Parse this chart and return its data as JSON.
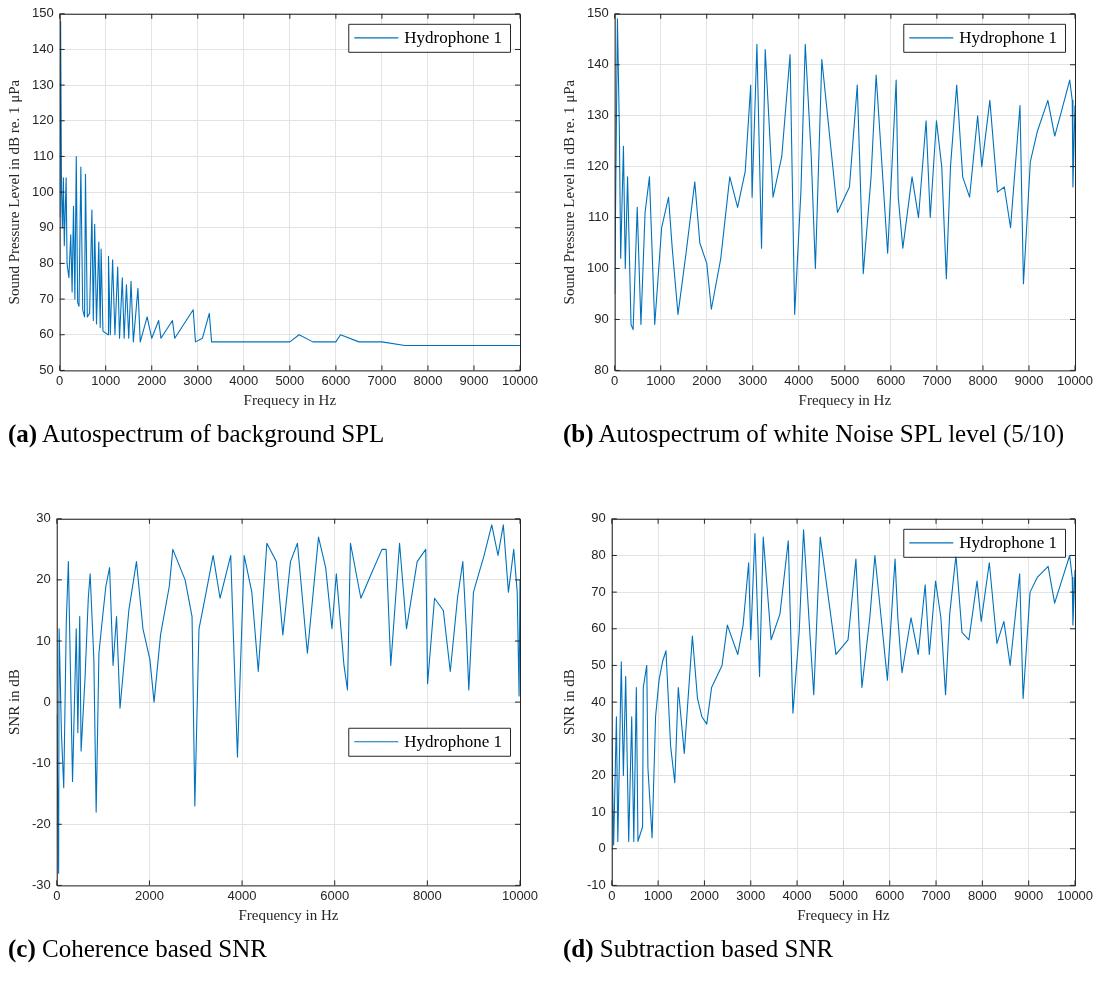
{
  "chart_data": [
    {
      "type": "line",
      "title": "(a) Autospectrum of background SPL",
      "xlabel": "Frequecy in Hz",
      "ylabel": "Sound Pressure Level in dB re. 1 μPa",
      "xlim": [
        0,
        10000
      ],
      "ylim": [
        50,
        150
      ],
      "xticks": [
        0,
        1000,
        2000,
        3000,
        4000,
        5000,
        6000,
        7000,
        8000,
        9000,
        10000
      ],
      "yticks": [
        50,
        60,
        70,
        80,
        90,
        100,
        110,
        120,
        130,
        140,
        150
      ],
      "grid": true,
      "legend": "top right",
      "series": [
        {
          "name": "Hydrophone 1",
          "color": "#0072bd",
          "x": [
            0,
            20,
            40,
            60,
            80,
            100,
            140,
            160,
            200,
            240,
            270,
            300,
            330,
            360,
            390,
            420,
            460,
            500,
            540,
            560,
            600,
            650,
            700,
            730,
            760,
            800,
            850,
            880,
            900,
            940,
            1050,
            1060,
            1100,
            1150,
            1200,
            1260,
            1300,
            1360,
            1400,
            1450,
            1500,
            1550,
            1600,
            1700,
            1750,
            1900,
            2000,
            2150,
            2200,
            2450,
            2500,
            2900,
            2950,
            3100,
            3250,
            3300,
            3500,
            4000,
            4500,
            5000,
            5200,
            5500,
            6000,
            6100,
            6500,
            7000,
            7500,
            8000,
            8500,
            9000,
            9500,
            10000
          ],
          "values": [
            93,
            148,
            100,
            90,
            104,
            85,
            104,
            80,
            76,
            88,
            72,
            96,
            70,
            110,
            69,
            68,
            107,
            67,
            65,
            105,
            65,
            66,
            95,
            64,
            91,
            63,
            86,
            62,
            84,
            61,
            60,
            82,
            60,
            81,
            60,
            79,
            59,
            76,
            59,
            74,
            59,
            75,
            58,
            73,
            58,
            65,
            59,
            64,
            59,
            64,
            59,
            67,
            58,
            59,
            66,
            58,
            58,
            58,
            58,
            58,
            60,
            58,
            58,
            60,
            58,
            58,
            57,
            57,
            57,
            57,
            57,
            57
          ]
        }
      ]
    },
    {
      "type": "line",
      "title": "(b) Autospectrum of white Noise SPL level (5/10)",
      "xlabel": "Frequecy in Hz",
      "ylabel": "Sound Pressure Level in dB re. 1 μPa",
      "xlim": [
        0,
        10000
      ],
      "ylim": [
        80,
        150
      ],
      "xticks": [
        0,
        1000,
        2000,
        3000,
        4000,
        5000,
        6000,
        7000,
        8000,
        9000,
        10000
      ],
      "yticks": [
        80,
        90,
        100,
        110,
        120,
        130,
        140,
        150
      ],
      "grid": true,
      "legend": "top right",
      "series": [
        {
          "name": "Hydrophone 1",
          "color": "#0072bd",
          "x": [
            0,
            60,
            100,
            130,
            190,
            230,
            280,
            355,
            400,
            490,
            570,
            660,
            755,
            870,
            1020,
            1170,
            1250,
            1375,
            1550,
            1740,
            1850,
            2000,
            2100,
            2305,
            2500,
            2670,
            2835,
            2955,
            2985,
            3090,
            3190,
            3270,
            3440,
            3630,
            3810,
            3910,
            4045,
            4140,
            4270,
            4360,
            4500,
            4840,
            5100,
            5270,
            5400,
            5570,
            5680,
            5930,
            6115,
            6160,
            6260,
            6460,
            6600,
            6765,
            6855,
            6990,
            7105,
            7205,
            7295,
            7430,
            7560,
            7710,
            7885,
            7975,
            8150,
            8315,
            8465,
            8600,
            8805,
            8880,
            9030,
            9185,
            9410,
            9560,
            9710,
            9885,
            9940,
            9955,
            10000
          ],
          "values": [
            95,
            149,
            128,
            102,
            124,
            100,
            118,
            89,
            88,
            112,
            89,
            111,
            118,
            89,
            108,
            114,
            104,
            91,
            103,
            117,
            105,
            101,
            92,
            102,
            118,
            112,
            119,
            136,
            114,
            144,
            104,
            143,
            114,
            122,
            142,
            91,
            115,
            144,
            122,
            100,
            141,
            111,
            116,
            136,
            99,
            118,
            138,
            103,
            137,
            114,
            104,
            118,
            110,
            129,
            110,
            129,
            120,
            98,
            120,
            136,
            118,
            114,
            130,
            120,
            133,
            115,
            116,
            108,
            132,
            97,
            121,
            127,
            133,
            126,
            131,
            137,
            133,
            116,
            132
          ]
        }
      ]
    },
    {
      "type": "line",
      "title": "(c) Coherence based SNR",
      "xlabel": "Frequency in Hz",
      "ylabel": "SNR in dB",
      "xlim": [
        0,
        10000
      ],
      "ylim": [
        -30,
        30
      ],
      "xticks": [
        0,
        2000,
        4000,
        6000,
        8000,
        10000
      ],
      "yticks": [
        -30,
        -20,
        -10,
        0,
        10,
        20,
        30
      ],
      "grid": true,
      "legend": "right",
      "series": [
        {
          "name": "Hydrophone 1",
          "color": "#0072bd",
          "x": [
            0,
            40,
            50,
            100,
            150,
            205,
            250,
            340,
            420,
            455,
            495,
            525,
            610,
            680,
            720,
            800,
            850,
            910,
            990,
            1060,
            1140,
            1215,
            1290,
            1365,
            1555,
            1720,
            1860,
            2010,
            2100,
            2240,
            2430,
            2505,
            2770,
            2920,
            2980,
            3070,
            3225,
            3375,
            3525,
            3755,
            3900,
            4045,
            4210,
            4350,
            4535,
            4740,
            4880,
            5045,
            5195,
            5410,
            5650,
            5805,
            5940,
            6035,
            6200,
            6275,
            6340,
            6565,
            6790,
            7020,
            7110,
            7210,
            7400,
            7550,
            7780,
            7965,
            8005,
            8155,
            8345,
            8495,
            8650,
            8765,
            8840,
            8895,
            8995,
            9225,
            9390,
            9525,
            9640,
            9750,
            9865,
            9940,
            9980,
            10000
          ],
          "values": [
            -2,
            -28,
            12,
            -5,
            -14,
            13,
            23,
            -13,
            12,
            -5,
            14,
            -8,
            4,
            17,
            21,
            7,
            -18,
            8,
            14,
            19,
            22,
            6,
            14,
            -1,
            15,
            23,
            12,
            7,
            0,
            11,
            19,
            25,
            20,
            14,
            -17,
            12,
            18,
            24,
            17,
            24,
            -9,
            24,
            18,
            5,
            26,
            23,
            11,
            23,
            26,
            8,
            27,
            22,
            12,
            21,
            6,
            2,
            26,
            17,
            21,
            25,
            25,
            6,
            26,
            12,
            23,
            25,
            3,
            17,
            15,
            5,
            17,
            23,
            12,
            2,
            18,
            24,
            29,
            24,
            29,
            18,
            25,
            18,
            1,
            20
          ]
        }
      ]
    },
    {
      "type": "line",
      "title": "(d) Subtraction based SNR",
      "xlabel": "Frequecy in Hz",
      "ylabel": "SNR in dB",
      "xlim": [
        0,
        10000
      ],
      "ylim": [
        -10,
        90
      ],
      "xticks": [
        0,
        1000,
        2000,
        3000,
        4000,
        5000,
        6000,
        7000,
        8000,
        9000,
        10000
      ],
      "yticks": [
        -10,
        0,
        10,
        20,
        30,
        40,
        50,
        60,
        70,
        80,
        90
      ],
      "grid": true,
      "legend": "top right",
      "series": [
        {
          "name": "Hydrophone 1",
          "color": "#0072bd",
          "x": [
            0,
            40,
            100,
            130,
            205,
            250,
            300,
            365,
            430,
            475,
            530,
            565,
            665,
            680,
            755,
            780,
            870,
            945,
            1020,
            1095,
            1170,
            1270,
            1360,
            1435,
            1565,
            1740,
            1850,
            1945,
            2050,
            2155,
            2380,
            2495,
            2720,
            2835,
            2955,
            3000,
            3090,
            3190,
            3270,
            3440,
            3630,
            3810,
            3910,
            4045,
            4140,
            4270,
            4360,
            4500,
            4840,
            5100,
            5270,
            5400,
            5570,
            5680,
            5950,
            6115,
            6175,
            6265,
            6460,
            6615,
            6765,
            6855,
            6990,
            7105,
            7205,
            7295,
            7430,
            7560,
            7710,
            7885,
            7975,
            8150,
            8315,
            8465,
            8600,
            8805,
            8880,
            9030,
            9185,
            9420,
            9560,
            9710,
            9885,
            9940,
            9955,
            10000
          ],
          "values": [
            30,
            1,
            36,
            2,
            51,
            20,
            47,
            2,
            36,
            2,
            44,
            2,
            6,
            44,
            50,
            22,
            3,
            36,
            46,
            51,
            54,
            28,
            18,
            44,
            26,
            58,
            41,
            36,
            34,
            44,
            50,
            61,
            53,
            61,
            78,
            57,
            86,
            47,
            85,
            57,
            64,
            84,
            37,
            59,
            87,
            60,
            42,
            85,
            53,
            57,
            79,
            44,
            63,
            80,
            46,
            79,
            63,
            48,
            63,
            53,
            72,
            53,
            73,
            63,
            42,
            64,
            80,
            59,
            57,
            73,
            62,
            78,
            56,
            62,
            50,
            75,
            41,
            70,
            74,
            77,
            67,
            73,
            80,
            74,
            61,
            76
          ]
        }
      ]
    }
  ]
}
